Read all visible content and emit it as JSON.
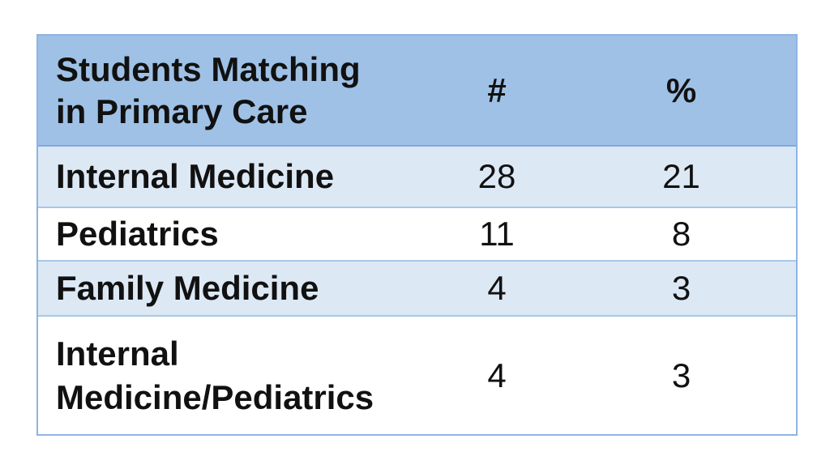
{
  "table": {
    "headers": {
      "label_line1": "Students Matching",
      "label_line2": "in Primary Care",
      "count": "#",
      "percent": "%"
    },
    "rows": [
      {
        "label_line1": "Internal Medicine",
        "label_line2": "",
        "count": "28",
        "percent": "21"
      },
      {
        "label_line1": "Pediatrics",
        "label_line2": "",
        "count": "11",
        "percent": "8"
      },
      {
        "label_line1": "Family Medicine",
        "label_line2": "",
        "count": "4",
        "percent": "3"
      },
      {
        "label_line1": "Internal",
        "label_line2": "Medicine/Pediatrics",
        "count": "4",
        "percent": "3"
      }
    ]
  },
  "colors": {
    "header_background": "#9fc1e6",
    "alternate_row_background": "#dde8f5",
    "border": "#8fb4e2"
  }
}
